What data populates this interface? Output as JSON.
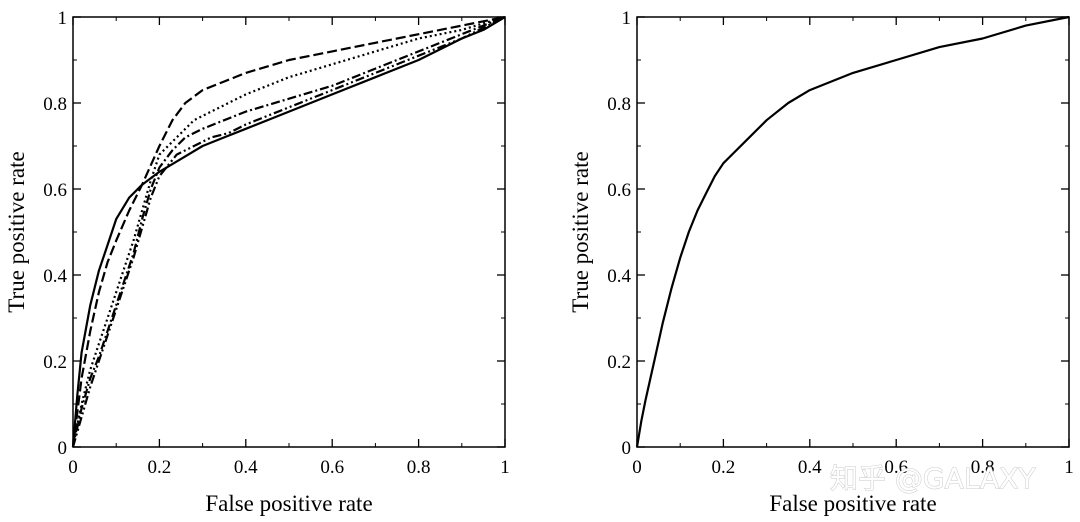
{
  "watermark": "知乎 @GALAXY",
  "chart_data": [
    {
      "type": "line",
      "title": "",
      "xlabel": "False positive rate",
      "ylabel": "True positive rate",
      "xlim": [
        0,
        1
      ],
      "ylim": [
        0,
        1
      ],
      "xticks": [
        0,
        0.2,
        0.4,
        0.6,
        0.8,
        1
      ],
      "yticks": [
        0,
        0.2,
        0.4,
        0.6,
        0.8,
        1
      ],
      "xtick_labels": [
        "0",
        "0.2",
        "0.4",
        "0.6",
        "0.8",
        "1"
      ],
      "ytick_labels": [
        "0",
        "0.2",
        "0.4",
        "0.6",
        "0.8",
        "1"
      ],
      "grid": false,
      "legend": "none",
      "series": [
        {
          "style": "solid",
          "x": [
            0,
            0.01,
            0.02,
            0.04,
            0.06,
            0.08,
            0.1,
            0.13,
            0.16,
            0.2,
            0.25,
            0.3,
            0.35,
            0.4,
            0.5,
            0.6,
            0.7,
            0.8,
            0.9,
            0.95,
            1
          ],
          "y": [
            0,
            0.12,
            0.22,
            0.33,
            0.41,
            0.47,
            0.53,
            0.58,
            0.61,
            0.64,
            0.67,
            0.7,
            0.72,
            0.74,
            0.78,
            0.82,
            0.86,
            0.9,
            0.95,
            0.97,
            1
          ]
        },
        {
          "style": "dashed",
          "x": [
            0,
            0.01,
            0.02,
            0.04,
            0.06,
            0.08,
            0.1,
            0.13,
            0.16,
            0.2,
            0.23,
            0.26,
            0.3,
            0.35,
            0.4,
            0.5,
            0.6,
            0.7,
            0.8,
            0.9,
            1
          ],
          "y": [
            0,
            0.08,
            0.16,
            0.27,
            0.36,
            0.43,
            0.48,
            0.55,
            0.61,
            0.7,
            0.76,
            0.8,
            0.83,
            0.85,
            0.87,
            0.9,
            0.92,
            0.94,
            0.96,
            0.98,
            1
          ]
        },
        {
          "style": "dotted",
          "x": [
            0,
            0.02,
            0.04,
            0.06,
            0.08,
            0.1,
            0.12,
            0.14,
            0.16,
            0.18,
            0.2,
            0.24,
            0.28,
            0.32,
            0.4,
            0.5,
            0.6,
            0.7,
            0.8,
            0.9,
            1
          ],
          "y": [
            0,
            0.1,
            0.18,
            0.24,
            0.3,
            0.36,
            0.42,
            0.48,
            0.55,
            0.62,
            0.68,
            0.72,
            0.76,
            0.78,
            0.82,
            0.86,
            0.89,
            0.92,
            0.95,
            0.97,
            1
          ]
        },
        {
          "style": "dash-dot",
          "x": [
            0,
            0.02,
            0.04,
            0.06,
            0.08,
            0.1,
            0.12,
            0.14,
            0.16,
            0.18,
            0.2,
            0.23,
            0.26,
            0.3,
            0.35,
            0.4,
            0.5,
            0.6,
            0.7,
            0.8,
            0.9,
            1
          ],
          "y": [
            0,
            0.09,
            0.16,
            0.21,
            0.27,
            0.33,
            0.39,
            0.45,
            0.53,
            0.6,
            0.65,
            0.69,
            0.72,
            0.74,
            0.76,
            0.78,
            0.81,
            0.84,
            0.88,
            0.92,
            0.96,
            1
          ]
        },
        {
          "style": "dash-dot-dot",
          "x": [
            0,
            0.02,
            0.04,
            0.06,
            0.08,
            0.1,
            0.12,
            0.14,
            0.16,
            0.18,
            0.2,
            0.24,
            0.28,
            0.32,
            0.36,
            0.4,
            0.5,
            0.6,
            0.7,
            0.8,
            0.9,
            1
          ],
          "y": [
            0,
            0.07,
            0.14,
            0.2,
            0.26,
            0.32,
            0.38,
            0.44,
            0.51,
            0.58,
            0.63,
            0.68,
            0.7,
            0.72,
            0.73,
            0.75,
            0.79,
            0.83,
            0.87,
            0.91,
            0.95,
            1
          ]
        }
      ]
    },
    {
      "type": "line",
      "title": "",
      "xlabel": "False positive rate",
      "ylabel": "True positive rate",
      "xlim": [
        0,
        1
      ],
      "ylim": [
        0,
        1
      ],
      "xticks": [
        0,
        0.2,
        0.4,
        0.6,
        0.8,
        1
      ],
      "yticks": [
        0,
        0.2,
        0.4,
        0.6,
        0.8,
        1
      ],
      "xtick_labels": [
        "0",
        "0.2",
        "0.4",
        "0.6",
        "0.8",
        "1"
      ],
      "ytick_labels": [
        "0",
        "0.2",
        "0.4",
        "0.6",
        "0.8",
        "1"
      ],
      "grid": false,
      "legend": "none",
      "series": [
        {
          "style": "solid",
          "x": [
            0,
            0.01,
            0.02,
            0.04,
            0.06,
            0.08,
            0.1,
            0.12,
            0.14,
            0.16,
            0.18,
            0.2,
            0.22,
            0.25,
            0.3,
            0.35,
            0.4,
            0.45,
            0.5,
            0.6,
            0.7,
            0.8,
            0.9,
            1
          ],
          "y": [
            0,
            0.06,
            0.11,
            0.2,
            0.29,
            0.37,
            0.44,
            0.5,
            0.55,
            0.59,
            0.63,
            0.66,
            0.68,
            0.71,
            0.76,
            0.8,
            0.83,
            0.85,
            0.87,
            0.9,
            0.93,
            0.95,
            0.98,
            1
          ]
        }
      ]
    }
  ]
}
